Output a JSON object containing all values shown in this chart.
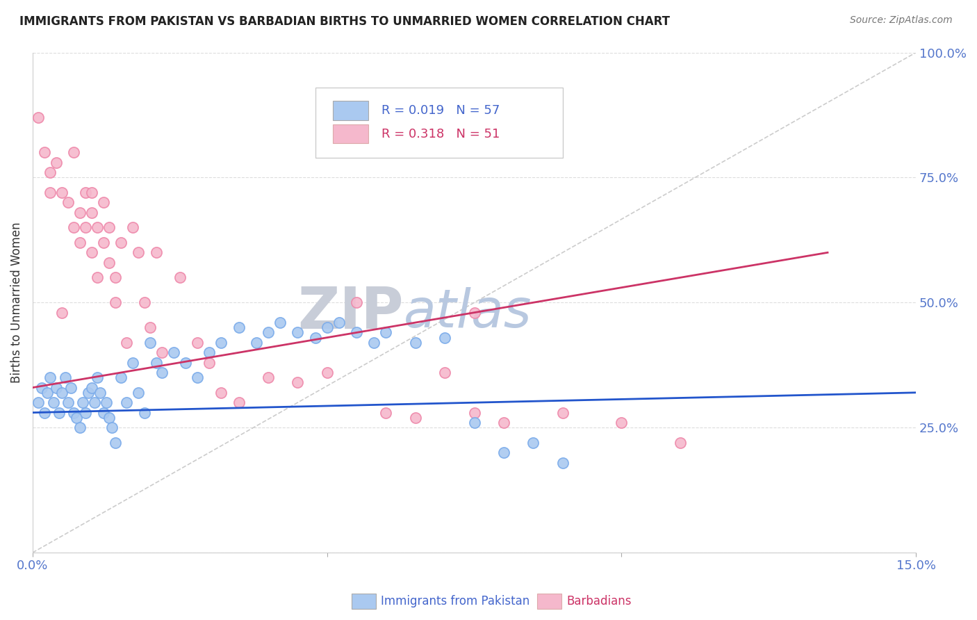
{
  "title": "IMMIGRANTS FROM PAKISTAN VS BARBADIAN BIRTHS TO UNMARRIED WOMEN CORRELATION CHART",
  "source": "Source: ZipAtlas.com",
  "xlabel_blue": "Immigrants from Pakistan",
  "xlabel_pink": "Barbadians",
  "ylabel": "Births to Unmarried Women",
  "xlim": [
    0.0,
    15.0
  ],
  "ylim": [
    0.0,
    100.0
  ],
  "ytick_labels": [
    "",
    "25.0%",
    "50.0%",
    "75.0%",
    "100.0%"
  ],
  "legend_blue_r": "R = 0.019",
  "legend_blue_n": "N = 57",
  "legend_pink_r": "R = 0.318",
  "legend_pink_n": "N = 51",
  "blue_color": "#aac9f0",
  "blue_edge_color": "#7aabea",
  "pink_color": "#f5b8cc",
  "pink_edge_color": "#ee88aa",
  "trendline_blue_color": "#2255cc",
  "trendline_pink_color": "#cc3366",
  "ref_line_color": "#cccccc",
  "watermark_zip_color": "#c8cdd8",
  "watermark_atlas_color": "#b8c8e0",
  "blue_scatter_x": [
    0.1,
    0.15,
    0.2,
    0.25,
    0.3,
    0.35,
    0.4,
    0.45,
    0.5,
    0.55,
    0.6,
    0.65,
    0.7,
    0.75,
    0.8,
    0.85,
    0.9,
    0.95,
    1.0,
    1.05,
    1.1,
    1.15,
    1.2,
    1.25,
    1.3,
    1.35,
    1.4,
    1.5,
    1.6,
    1.7,
    1.8,
    1.9,
    2.0,
    2.1,
    2.2,
    2.4,
    2.6,
    2.8,
    3.0,
    3.2,
    3.5,
    3.8,
    4.0,
    4.2,
    4.5,
    4.8,
    5.0,
    5.2,
    5.5,
    5.8,
    6.0,
    6.5,
    7.0,
    7.5,
    8.0,
    8.5,
    9.0
  ],
  "blue_scatter_y": [
    30,
    33,
    28,
    32,
    35,
    30,
    33,
    28,
    32,
    35,
    30,
    33,
    28,
    27,
    25,
    30,
    28,
    32,
    33,
    30,
    35,
    32,
    28,
    30,
    27,
    25,
    22,
    35,
    30,
    38,
    32,
    28,
    42,
    38,
    36,
    40,
    38,
    35,
    40,
    42,
    45,
    42,
    44,
    46,
    44,
    43,
    45,
    46,
    44,
    42,
    44,
    42,
    43,
    26,
    20,
    22,
    18
  ],
  "pink_scatter_x": [
    0.1,
    0.2,
    0.3,
    0.3,
    0.4,
    0.5,
    0.5,
    0.6,
    0.7,
    0.7,
    0.8,
    0.8,
    0.9,
    0.9,
    1.0,
    1.0,
    1.0,
    1.1,
    1.1,
    1.2,
    1.2,
    1.3,
    1.3,
    1.4,
    1.4,
    1.5,
    1.6,
    1.7,
    1.8,
    1.9,
    2.0,
    2.1,
    2.2,
    2.5,
    2.8,
    3.0,
    3.2,
    3.5,
    4.0,
    4.5,
    5.0,
    5.5,
    6.0,
    6.5,
    7.0,
    7.5,
    8.0,
    9.0,
    10.0,
    11.0,
    7.5
  ],
  "pink_scatter_y": [
    87,
    80,
    76,
    72,
    78,
    48,
    72,
    70,
    65,
    80,
    68,
    62,
    72,
    65,
    60,
    68,
    72,
    65,
    55,
    70,
    62,
    58,
    65,
    50,
    55,
    62,
    42,
    65,
    60,
    50,
    45,
    60,
    40,
    55,
    42,
    38,
    32,
    30,
    35,
    34,
    36,
    50,
    28,
    27,
    36,
    28,
    26,
    28,
    26,
    22,
    48
  ],
  "blue_trend_x": [
    0.0,
    15.0
  ],
  "blue_trend_y": [
    28.0,
    32.0
  ],
  "pink_trend_x": [
    0.0,
    13.5
  ],
  "pink_trend_y": [
    33.0,
    60.0
  ],
  "ref_line_x": [
    0.0,
    15.0
  ],
  "ref_line_y": [
    0.0,
    100.0
  ]
}
